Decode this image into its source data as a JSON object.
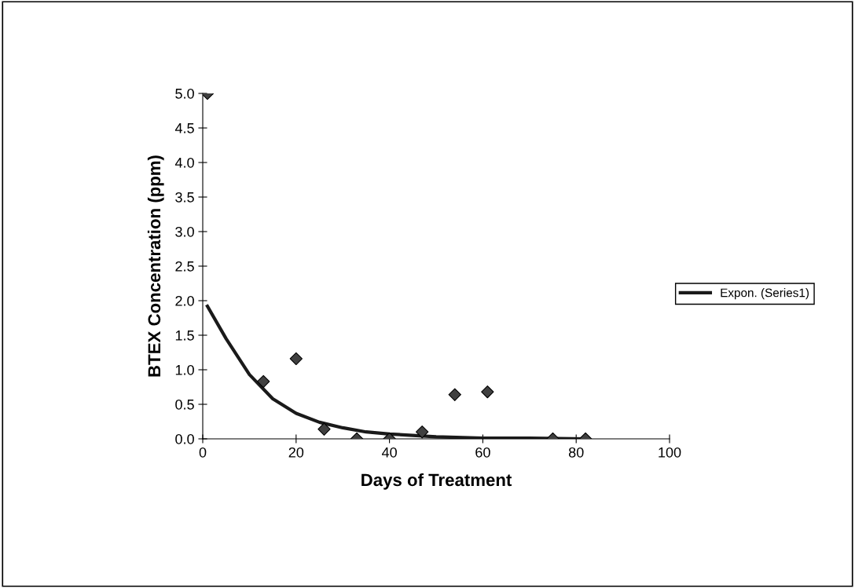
{
  "chart_data": {
    "type": "scatter",
    "xlabel": "Days of Treatment",
    "ylabel": "BTEX Concentration (ppm)",
    "xlim": [
      0,
      100
    ],
    "xticks": [
      0,
      20,
      40,
      60,
      80,
      100
    ],
    "ylim": [
      0,
      5
    ],
    "yticks": [
      {
        "value": 0,
        "label": "0.0"
      },
      {
        "value": 0.5,
        "label": "0.5"
      },
      {
        "value": 1,
        "label": "1.0"
      },
      {
        "value": 1.5,
        "label": "1.5"
      },
      {
        "value": 2,
        "label": "2.0"
      },
      {
        "value": 2.5,
        "label": "2.5"
      },
      {
        "value": 3,
        "label": "3.0"
      },
      {
        "value": 3.5,
        "label": "3.5"
      },
      {
        "value": 4,
        "label": "4.0"
      },
      {
        "value": 4.5,
        "label": "4.5"
      },
      {
        "value": 5,
        "label": "5.0"
      }
    ],
    "grid": false,
    "legend": "right",
    "series": [
      {
        "marker": "diamond",
        "color": "#404040",
        "x": [
          1,
          13,
          20,
          26,
          33,
          40,
          47,
          54,
          61,
          75,
          82
        ],
        "values": [
          5.0,
          0.83,
          1.16,
          0.14,
          0.0,
          0.0,
          0.1,
          0.64,
          0.68,
          0.0,
          0.0
        ]
      },
      {
        "type": "line",
        "marker": "none",
        "name": "Expon. (Series1)",
        "color": "#1a1a1a",
        "x": [
          1,
          5,
          10,
          15,
          20,
          25,
          30,
          35,
          40,
          50,
          60,
          70,
          82
        ],
        "values": [
          1.92,
          1.45,
          0.93,
          0.58,
          0.37,
          0.24,
          0.16,
          0.1,
          0.07,
          0.03,
          0.01,
          0.01,
          0.0
        ]
      }
    ]
  }
}
